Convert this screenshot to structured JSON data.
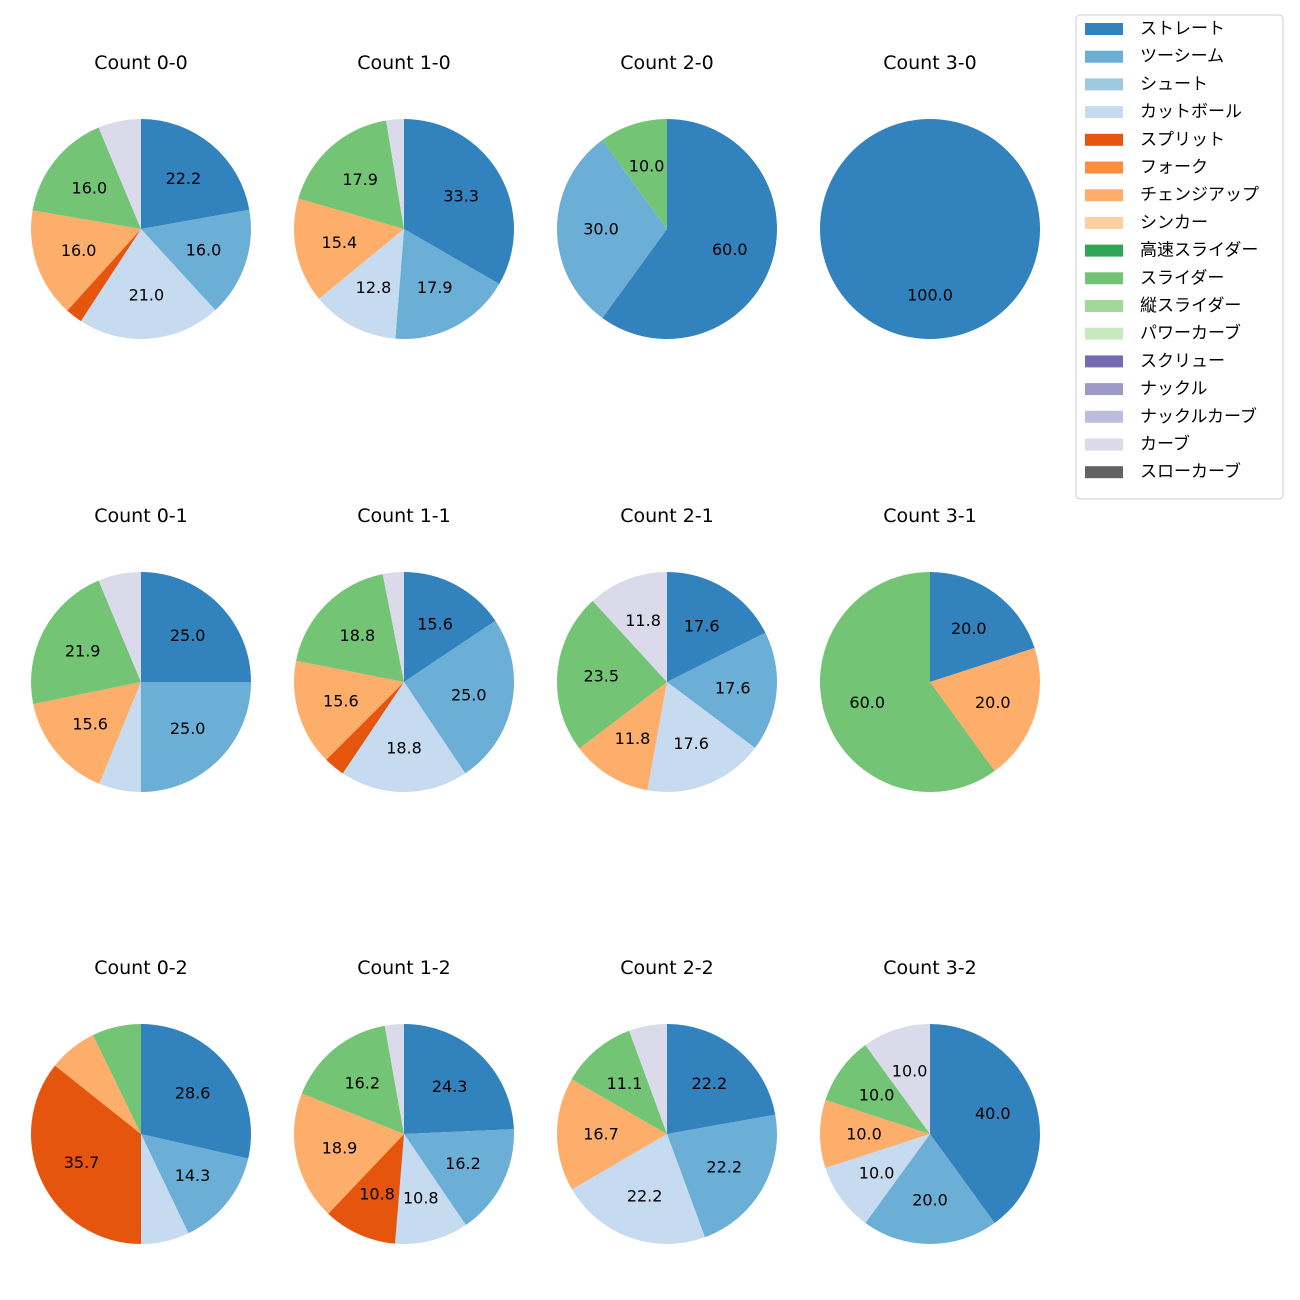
{
  "colors": {
    "ストレート": "#3182bd",
    "ツーシーム": "#6baed6",
    "シュート": "#9ecae1",
    "カットボール": "#c6dbef",
    "スプリット": "#e6550d",
    "フォーク": "#fd8d3c",
    "チェンジアップ": "#fdae6b",
    "シンカー": "#fdd0a2",
    "高速スライダー": "#31a354",
    "スライダー": "#74c476",
    "縦スライダー": "#a1d99b",
    "パワーカーブ": "#c7e9c0",
    "スクリュー": "#756bb1",
    "ナックル": "#9e9ac8",
    "ナックルカーブ": "#bcbddc",
    "カーブ": "#dadaeb",
    "スローカーブ": "#636363"
  },
  "chart_data": {
    "type": "pie",
    "legend": {
      "position": "top-right",
      "entries": [
        "ストレート",
        "ツーシーム",
        "シュート",
        "カットボール",
        "スプリット",
        "フォーク",
        "チェンジアップ",
        "シンカー",
        "高速スライダー",
        "スライダー",
        "縦スライダー",
        "パワーカーブ",
        "スクリュー",
        "ナックル",
        "ナックルカーブ",
        "カーブ",
        "スローカーブ"
      ]
    },
    "charts": [
      {
        "title": "Count 0-0",
        "slices": [
          {
            "name": "ストレート",
            "value": 22.2,
            "label": "22.2"
          },
          {
            "name": "ツーシーム",
            "value": 16.0,
            "label": "16.0"
          },
          {
            "name": "カットボール",
            "value": 21.0,
            "label": "21.0"
          },
          {
            "name": "スプリット",
            "value": 2.5,
            "label": ""
          },
          {
            "name": "チェンジアップ",
            "value": 16.0,
            "label": "16.0"
          },
          {
            "name": "スライダー",
            "value": 16.0,
            "label": "16.0"
          },
          {
            "name": "カーブ",
            "value": 6.3,
            "label": ""
          }
        ]
      },
      {
        "title": "Count 1-0",
        "slices": [
          {
            "name": "ストレート",
            "value": 33.3,
            "label": "33.3"
          },
          {
            "name": "ツーシーム",
            "value": 17.9,
            "label": "17.9"
          },
          {
            "name": "カットボール",
            "value": 12.8,
            "label": "12.8"
          },
          {
            "name": "チェンジアップ",
            "value": 15.4,
            "label": "15.4"
          },
          {
            "name": "スライダー",
            "value": 17.9,
            "label": "17.9"
          },
          {
            "name": "カーブ",
            "value": 2.6,
            "label": ""
          }
        ]
      },
      {
        "title": "Count 2-0",
        "slices": [
          {
            "name": "ストレート",
            "value": 60.0,
            "label": "60.0"
          },
          {
            "name": "ツーシーム",
            "value": 30.0,
            "label": "30.0"
          },
          {
            "name": "スライダー",
            "value": 10.0,
            "label": "10.0"
          }
        ]
      },
      {
        "title": "Count 3-0",
        "slices": [
          {
            "name": "ストレート",
            "value": 100.0,
            "label": "100.0"
          }
        ]
      },
      {
        "title": "Count 0-1",
        "slices": [
          {
            "name": "ストレート",
            "value": 25.0,
            "label": "25.0"
          },
          {
            "name": "ツーシーム",
            "value": 25.0,
            "label": "25.0"
          },
          {
            "name": "カットボール",
            "value": 6.2,
            "label": ""
          },
          {
            "name": "チェンジアップ",
            "value": 15.6,
            "label": "15.6"
          },
          {
            "name": "スライダー",
            "value": 21.9,
            "label": "21.9"
          },
          {
            "name": "カーブ",
            "value": 6.3,
            "label": ""
          }
        ]
      },
      {
        "title": "Count 1-1",
        "slices": [
          {
            "name": "ストレート",
            "value": 15.6,
            "label": "15.6"
          },
          {
            "name": "ツーシーム",
            "value": 25.0,
            "label": "25.0"
          },
          {
            "name": "カットボール",
            "value": 18.8,
            "label": "18.8"
          },
          {
            "name": "スプリット",
            "value": 3.1,
            "label": ""
          },
          {
            "name": "チェンジアップ",
            "value": 15.6,
            "label": "15.6"
          },
          {
            "name": "スライダー",
            "value": 18.8,
            "label": "18.8"
          },
          {
            "name": "カーブ",
            "value": 3.1,
            "label": ""
          }
        ]
      },
      {
        "title": "Count 2-1",
        "slices": [
          {
            "name": "ストレート",
            "value": 17.6,
            "label": "17.6"
          },
          {
            "name": "ツーシーム",
            "value": 17.6,
            "label": "17.6"
          },
          {
            "name": "カットボール",
            "value": 17.6,
            "label": "17.6"
          },
          {
            "name": "チェンジアップ",
            "value": 11.8,
            "label": "11.8"
          },
          {
            "name": "スライダー",
            "value": 23.5,
            "label": "23.5"
          },
          {
            "name": "カーブ",
            "value": 11.8,
            "label": "11.8"
          }
        ]
      },
      {
        "title": "Count 3-1",
        "slices": [
          {
            "name": "ストレート",
            "value": 20.0,
            "label": "20.0"
          },
          {
            "name": "チェンジアップ",
            "value": 20.0,
            "label": "20.0"
          },
          {
            "name": "スライダー",
            "value": 60.0,
            "label": "60.0"
          }
        ]
      },
      {
        "title": "Count 0-2",
        "slices": [
          {
            "name": "ストレート",
            "value": 28.6,
            "label": "28.6"
          },
          {
            "name": "ツーシーム",
            "value": 14.3,
            "label": "14.3"
          },
          {
            "name": "カットボール",
            "value": 7.1,
            "label": ""
          },
          {
            "name": "スプリット",
            "value": 35.7,
            "label": "35.7"
          },
          {
            "name": "チェンジアップ",
            "value": 7.1,
            "label": ""
          },
          {
            "name": "スライダー",
            "value": 7.2,
            "label": ""
          }
        ]
      },
      {
        "title": "Count 1-2",
        "slices": [
          {
            "name": "ストレート",
            "value": 24.3,
            "label": "24.3"
          },
          {
            "name": "ツーシーム",
            "value": 16.2,
            "label": "16.2"
          },
          {
            "name": "カットボール",
            "value": 10.8,
            "label": "10.8"
          },
          {
            "name": "スプリット",
            "value": 10.8,
            "label": "10.8"
          },
          {
            "name": "チェンジアップ",
            "value": 18.9,
            "label": "18.9"
          },
          {
            "name": "スライダー",
            "value": 16.2,
            "label": "16.2"
          },
          {
            "name": "カーブ",
            "value": 2.8,
            "label": ""
          }
        ]
      },
      {
        "title": "Count 2-2",
        "slices": [
          {
            "name": "ストレート",
            "value": 22.2,
            "label": "22.2"
          },
          {
            "name": "ツーシーム",
            "value": 22.2,
            "label": "22.2"
          },
          {
            "name": "カットボール",
            "value": 22.2,
            "label": "22.2"
          },
          {
            "name": "チェンジアップ",
            "value": 16.7,
            "label": "16.7"
          },
          {
            "name": "スライダー",
            "value": 11.1,
            "label": "11.1"
          },
          {
            "name": "カーブ",
            "value": 5.6,
            "label": ""
          }
        ]
      },
      {
        "title": "Count 3-2",
        "slices": [
          {
            "name": "ストレート",
            "value": 40.0,
            "label": "40.0"
          },
          {
            "name": "ツーシーム",
            "value": 20.0,
            "label": "20.0"
          },
          {
            "name": "カットボール",
            "value": 10.0,
            "label": "10.0"
          },
          {
            "name": "チェンジアップ",
            "value": 10.0,
            "label": "10.0"
          },
          {
            "name": "スライダー",
            "value": 10.0,
            "label": "10.0"
          },
          {
            "name": "カーブ",
            "value": 10.0,
            "label": "10.0"
          }
        ]
      }
    ]
  }
}
